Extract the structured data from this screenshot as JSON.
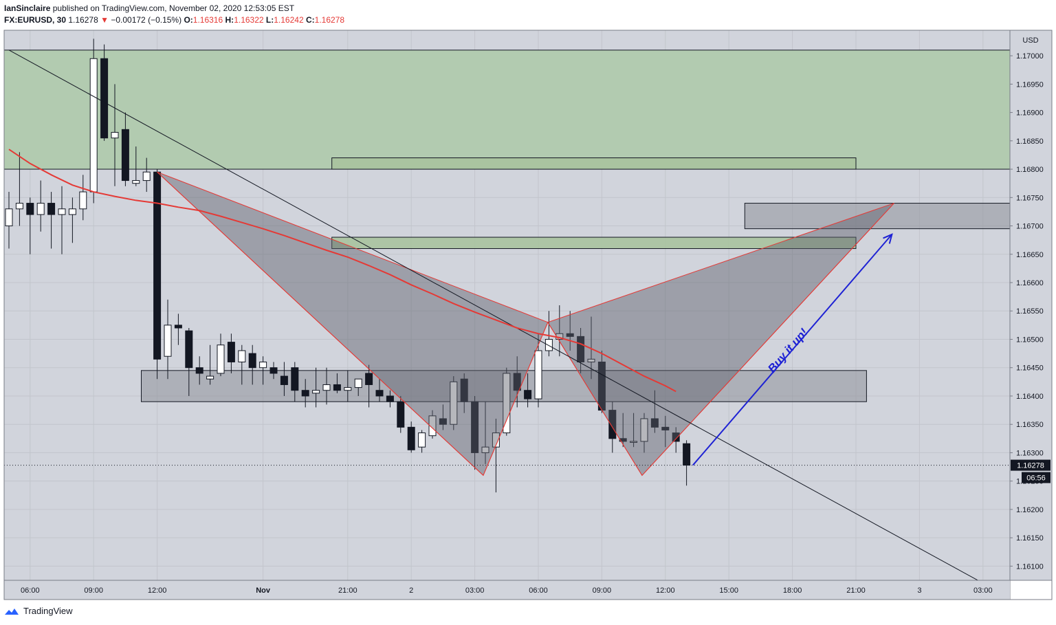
{
  "header": {
    "author": "IanSinclaire",
    "published_text": "published on TradingView.com, November 02, 2020 12:53:05 EST",
    "symbol": "FX:EURUSD, 30",
    "last": "1.16278",
    "change_arrow": "▼",
    "change": "−0.00172 (−0.15%)",
    "o_label": "O:",
    "o_value": "1.16316",
    "h_label": "H:",
    "h_value": "1.16322",
    "l_label": "L:",
    "l_value": "1.16242",
    "c_label": "C:",
    "c_value": "1.16278"
  },
  "footer": {
    "brand": "TradingView",
    "logo_icon": "tradingview-logo-icon"
  },
  "chart_data": {
    "type": "candlestick",
    "symbol": "FX:EURUSD",
    "interval": "30",
    "currency_label": "USD",
    "ylim": [
      1.16075,
      1.17045
    ],
    "grid": true,
    "y_ticks": [
      "1.17000",
      "1.16950",
      "1.16900",
      "1.16850",
      "1.16800",
      "1.16750",
      "1.16700",
      "1.16650",
      "1.16600",
      "1.16550",
      "1.16500",
      "1.16450",
      "1.16400",
      "1.16350",
      "1.16300",
      "1.16250",
      "1.16200",
      "1.16150",
      "1.16100"
    ],
    "x_ticks": [
      {
        "label": "06:00",
        "i": 2
      },
      {
        "label": "09:00",
        "i": 8
      },
      {
        "label": "12:00",
        "i": 14
      },
      {
        "label": "Nov",
        "i": 24
      },
      {
        "label": "21:00",
        "i": 32
      },
      {
        "label": "2",
        "i": 38
      },
      {
        "label": "03:00",
        "i": 44
      },
      {
        "label": "06:00",
        "i": 50
      },
      {
        "label": "09:00",
        "i": 56
      },
      {
        "label": "12:00",
        "i": 62
      },
      {
        "label": "15:00",
        "i": 68
      },
      {
        "label": "18:00",
        "i": 74
      },
      {
        "label": "21:00",
        "i": 80
      },
      {
        "label": "3",
        "i": 86
      },
      {
        "label": "03:00",
        "i": 92
      }
    ],
    "candles": [
      [
        1.167,
        1.1676,
        1.1666,
        1.1673
      ],
      [
        1.1673,
        1.1683,
        1.167,
        1.1674
      ],
      [
        1.1674,
        1.1675,
        1.1665,
        1.1672
      ],
      [
        1.1672,
        1.1678,
        1.1669,
        1.1674
      ],
      [
        1.1674,
        1.1676,
        1.1666,
        1.1672
      ],
      [
        1.1672,
        1.1677,
        1.1665,
        1.1673
      ],
      [
        1.1672,
        1.1675,
        1.1667,
        1.1673
      ],
      [
        1.1673,
        1.1679,
        1.1671,
        1.1676
      ],
      [
        1.1676,
        1.1703,
        1.1674,
        1.16995
      ],
      [
        1.16995,
        1.1702,
        1.1685,
        1.16855
      ],
      [
        1.16855,
        1.1695,
        1.1677,
        1.16865
      ],
      [
        1.1687,
        1.169,
        1.1677,
        1.1678
      ],
      [
        1.16775,
        1.1684,
        1.1677,
        1.1678
      ],
      [
        1.1678,
        1.1682,
        1.1676,
        1.16795
      ],
      [
        1.16795,
        1.168,
        1.1643,
        1.16465
      ],
      [
        1.1647,
        1.1657,
        1.1643,
        1.16525
      ],
      [
        1.16525,
        1.16545,
        1.1649,
        1.1652
      ],
      [
        1.16515,
        1.1652,
        1.164,
        1.1645
      ],
      [
        1.1645,
        1.1647,
        1.1642,
        1.1644
      ],
      [
        1.1643,
        1.1649,
        1.1642,
        1.16435
      ],
      [
        1.1644,
        1.1651,
        1.16435,
        1.1649
      ],
      [
        1.16495,
        1.1651,
        1.1644,
        1.1646
      ],
      [
        1.1646,
        1.1649,
        1.1642,
        1.1648
      ],
      [
        1.16475,
        1.1649,
        1.1642,
        1.1645
      ],
      [
        1.1645,
        1.1647,
        1.1642,
        1.1646
      ],
      [
        1.1645,
        1.1646,
        1.1643,
        1.1644
      ],
      [
        1.16435,
        1.1646,
        1.164,
        1.1642
      ],
      [
        1.1645,
        1.1646,
        1.1639,
        1.1641
      ],
      [
        1.1641,
        1.1643,
        1.1638,
        1.164
      ],
      [
        1.16405,
        1.1645,
        1.1638,
        1.1641
      ],
      [
        1.1641,
        1.1645,
        1.16385,
        1.1642
      ],
      [
        1.1642,
        1.1644,
        1.16405,
        1.1641
      ],
      [
        1.1641,
        1.16445,
        1.1639,
        1.16415
      ],
      [
        1.16415,
        1.1643,
        1.164,
        1.1643
      ],
      [
        1.1644,
        1.16455,
        1.1638,
        1.1642
      ],
      [
        1.1641,
        1.1643,
        1.1639,
        1.164
      ],
      [
        1.164,
        1.1641,
        1.1638,
        1.1639
      ],
      [
        1.1639,
        1.164,
        1.16335,
        1.16345
      ],
      [
        1.16345,
        1.16355,
        1.163,
        1.16305
      ],
      [
        1.1631,
        1.1634,
        1.163,
        1.16335
      ],
      [
        1.1633,
        1.16375,
        1.16325,
        1.16365
      ],
      [
        1.1636,
        1.16385,
        1.1634,
        1.1635
      ],
      [
        1.1635,
        1.16435,
        1.1634,
        1.16425
      ],
      [
        1.1643,
        1.1644,
        1.1637,
        1.1639
      ],
      [
        1.1639,
        1.164,
        1.1627,
        1.163
      ],
      [
        1.163,
        1.1639,
        1.1628,
        1.1631
      ],
      [
        1.1631,
        1.1636,
        1.1623,
        1.16335
      ],
      [
        1.16335,
        1.1645,
        1.1633,
        1.1644
      ],
      [
        1.1644,
        1.1647,
        1.1638,
        1.1641
      ],
      [
        1.1641,
        1.1644,
        1.1638,
        1.16395
      ],
      [
        1.16395,
        1.1651,
        1.1638,
        1.1648
      ],
      [
        1.1648,
        1.1655,
        1.1647,
        1.165
      ],
      [
        1.165,
        1.1656,
        1.1647,
        1.1651
      ],
      [
        1.1651,
        1.1655,
        1.1648,
        1.16505
      ],
      [
        1.16505,
        1.1652,
        1.1644,
        1.1646
      ],
      [
        1.1646,
        1.1654,
        1.1643,
        1.16465
      ],
      [
        1.1646,
        1.1648,
        1.1637,
        1.16375
      ],
      [
        1.16375,
        1.1639,
        1.163,
        1.16325
      ],
      [
        1.16325,
        1.1637,
        1.1631,
        1.1632
      ],
      [
        1.1632,
        1.1637,
        1.1631,
        1.1632
      ],
      [
        1.1632,
        1.1637,
        1.163,
        1.1636
      ],
      [
        1.1636,
        1.1641,
        1.16335,
        1.16345
      ],
      [
        1.16345,
        1.16365,
        1.1631,
        1.1634
      ],
      [
        1.16335,
        1.16345,
        1.163,
        1.1632
      ],
      [
        1.16316,
        1.16322,
        1.16242,
        1.16278
      ]
    ],
    "ma_line": [
      [
        0,
        1.16835
      ],
      [
        2,
        1.1681
      ],
      [
        4,
        1.1679
      ],
      [
        6,
        1.16772
      ],
      [
        8,
        1.1676
      ],
      [
        10,
        1.16752
      ],
      [
        12,
        1.16745
      ],
      [
        14,
        1.1674
      ],
      [
        16,
        1.16733
      ],
      [
        18,
        1.16727
      ],
      [
        20,
        1.16717
      ],
      [
        22,
        1.16706
      ],
      [
        24,
        1.16695
      ],
      [
        26,
        1.16683
      ],
      [
        28,
        1.1667
      ],
      [
        30,
        1.16657
      ],
      [
        32,
        1.16645
      ],
      [
        34,
        1.1663
      ],
      [
        36,
        1.16614
      ],
      [
        38,
        1.16596
      ],
      [
        40,
        1.1658
      ],
      [
        42,
        1.16563
      ],
      [
        44,
        1.16548
      ],
      [
        46,
        1.16534
      ],
      [
        48,
        1.1652
      ],
      [
        50,
        1.1651
      ],
      [
        52,
        1.16503
      ],
      [
        54,
        1.16492
      ],
      [
        56,
        1.16475
      ],
      [
        58,
        1.16455
      ],
      [
        60,
        1.16435
      ],
      [
        62,
        1.16418
      ],
      [
        63,
        1.16408
      ]
    ],
    "zones": [
      {
        "kind": "supply-green",
        "x0": -1,
        "x1": 95,
        "y_top": 1.1701,
        "y_bot": 1.168
      },
      {
        "kind": "green-bar",
        "x0": 30.5,
        "x1": 80,
        "y_top": 1.1682,
        "y_bot": 1.168
      },
      {
        "kind": "green-bar",
        "x0": 30.5,
        "x1": 80,
        "y_top": 1.1668,
        "y_bot": 1.1666
      },
      {
        "kind": "gray-box",
        "x0": 12.5,
        "x1": 81,
        "y_top": 1.16445,
        "y_bot": 1.1639
      },
      {
        "kind": "gray-box",
        "x0": 69.5,
        "x1": 95,
        "y_top": 1.1674,
        "y_bot": 1.16695
      }
    ],
    "harmonic_pattern": [
      [
        14,
        1.16795
      ],
      [
        44.8,
        1.1626
      ],
      [
        50.9,
        1.1653
      ],
      [
        59.8,
        1.1626
      ],
      [
        83.6,
        1.1674
      ]
    ],
    "trendline": [
      [
        0,
        1.1701
      ],
      [
        92,
        1.1607
      ]
    ],
    "arrow": [
      [
        64.6,
        1.16278
      ],
      [
        83.4,
        1.16685
      ]
    ],
    "annotation": "Buy it up!",
    "current_price": "1.16278",
    "countdown": "06:56"
  }
}
